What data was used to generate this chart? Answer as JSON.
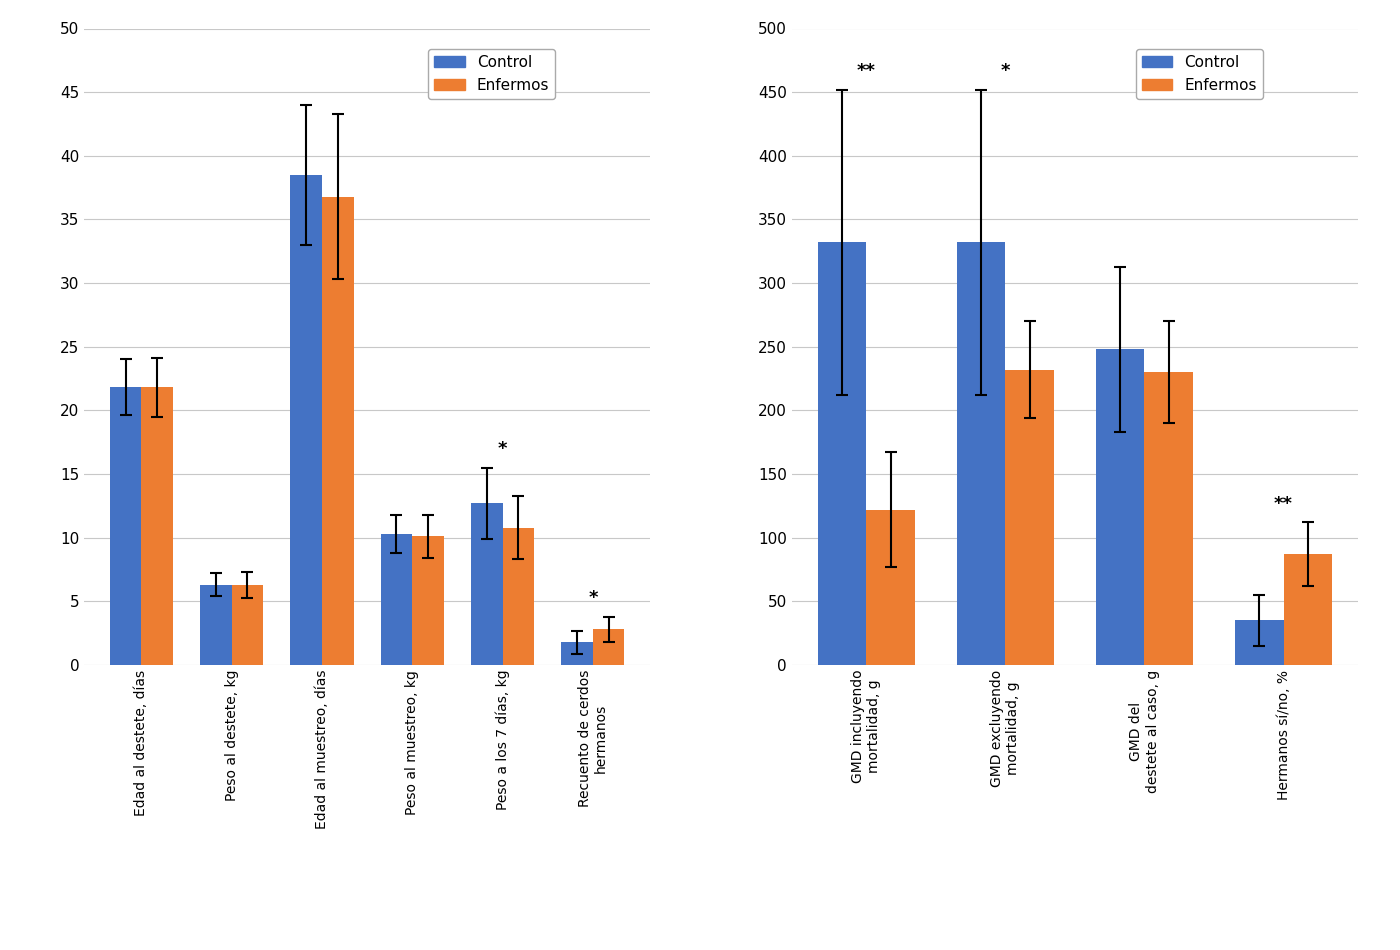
{
  "left_chart": {
    "categories": [
      "Edad al destete, días",
      "Peso al destete, kg",
      "Edad al muestreo, días",
      "Peso al muestreo, kg",
      "Peso a los 7 días, kg",
      "Recuento de cerdos\nhermanos"
    ],
    "control_values": [
      21.8,
      6.3,
      38.5,
      10.3,
      12.7,
      1.8
    ],
    "enfermo_values": [
      21.8,
      6.3,
      36.8,
      10.1,
      10.8,
      2.8
    ],
    "control_errors": [
      2.2,
      0.9,
      5.5,
      1.5,
      2.8,
      0.9
    ],
    "enfermo_errors": [
      2.3,
      1.0,
      6.5,
      1.7,
      2.5,
      1.0
    ],
    "ylim": [
      0,
      50
    ],
    "yticks": [
      0,
      5,
      10,
      15,
      20,
      25,
      30,
      35,
      40,
      45,
      50
    ],
    "significance": [
      "",
      "",
      "",
      "",
      "*",
      "*"
    ]
  },
  "right_chart": {
    "categories": [
      "GMD incluyendo\nmortalidad, g",
      "GMD excluyendo\nmortalidad, g",
      "GMD del\ndestete al caso, g",
      "Hermanos sí/no, %"
    ],
    "control_values": [
      332,
      332,
      248,
      35
    ],
    "enfermo_values": [
      122,
      232,
      230,
      87
    ],
    "control_errors": [
      120,
      120,
      65,
      20
    ],
    "enfermo_errors": [
      45,
      38,
      40,
      25
    ],
    "ylim": [
      0,
      500
    ],
    "yticks": [
      0,
      50,
      100,
      150,
      200,
      250,
      300,
      350,
      400,
      450,
      500
    ],
    "significance": [
      "**",
      "*",
      "",
      "**"
    ]
  },
  "colors": {
    "control": "#4472C4",
    "enfermo": "#ED7D31"
  },
  "legend_labels": [
    "Control",
    "Enfermos"
  ],
  "background_color": "#FFFFFF",
  "grid_color": "#C8C8C8"
}
